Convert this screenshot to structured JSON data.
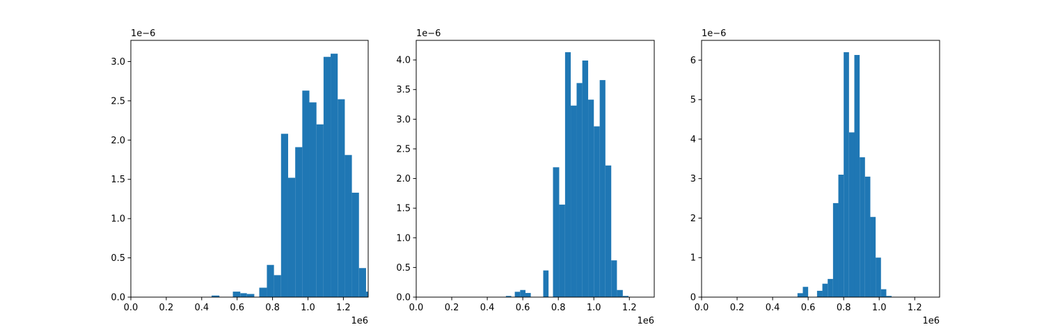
{
  "chart_data": [
    {
      "type": "histogram",
      "bar_color": "#1f77b4",
      "x_offset_label": "1e6",
      "y_offset_label": "1e−6",
      "xlim": [
        0,
        1.34
      ],
      "ylim": [
        0,
        3.27
      ],
      "x_ticks": [
        0.0,
        0.2,
        0.4,
        0.6,
        0.8,
        1.0,
        1.2
      ],
      "x_tick_labels": [
        "0.0",
        "0.2",
        "0.4",
        "0.6",
        "0.8",
        "1.0",
        "1.2"
      ],
      "y_ticks": [
        0.0,
        0.5,
        1.0,
        1.5,
        2.0,
        2.5,
        3.0
      ],
      "y_tick_labels": [
        "0.0",
        "0.5",
        "1.0",
        "1.5",
        "2.0",
        "2.5",
        "3.0"
      ],
      "bins": [
        {
          "x0": 0.456,
          "x1": 0.5,
          "value": 0.02
        },
        {
          "x0": 0.576,
          "x1": 0.618,
          "value": 0.07
        },
        {
          "x0": 0.618,
          "x1": 0.655,
          "value": 0.05
        },
        {
          "x0": 0.655,
          "x1": 0.697,
          "value": 0.04
        },
        {
          "x0": 0.725,
          "x1": 0.768,
          "value": 0.12
        },
        {
          "x0": 0.768,
          "x1": 0.808,
          "value": 0.41
        },
        {
          "x0": 0.808,
          "x1": 0.848,
          "value": 0.28
        },
        {
          "x0": 0.848,
          "x1": 0.888,
          "value": 2.08
        },
        {
          "x0": 0.888,
          "x1": 0.928,
          "value": 1.52
        },
        {
          "x0": 0.928,
          "x1": 0.968,
          "value": 1.91
        },
        {
          "x0": 0.968,
          "x1": 1.008,
          "value": 2.63
        },
        {
          "x0": 1.008,
          "x1": 1.048,
          "value": 2.48
        },
        {
          "x0": 1.048,
          "x1": 1.088,
          "value": 2.2
        },
        {
          "x0": 1.088,
          "x1": 1.128,
          "value": 3.06
        },
        {
          "x0": 1.128,
          "x1": 1.168,
          "value": 3.1
        },
        {
          "x0": 1.168,
          "x1": 1.208,
          "value": 2.52
        },
        {
          "x0": 1.208,
          "x1": 1.248,
          "value": 1.81
        },
        {
          "x0": 1.248,
          "x1": 1.288,
          "value": 1.33
        },
        {
          "x0": 1.288,
          "x1": 1.328,
          "value": 0.37
        },
        {
          "x0": 1.328,
          "x1": 1.34,
          "value": 0.07
        }
      ]
    },
    {
      "type": "histogram",
      "bar_color": "#1f77b4",
      "x_offset_label": "1e6",
      "y_offset_label": "1e−6",
      "xlim": [
        0,
        1.34
      ],
      "ylim": [
        0,
        4.33
      ],
      "x_ticks": [
        0.0,
        0.2,
        0.4,
        0.6,
        0.8,
        1.0,
        1.2
      ],
      "x_tick_labels": [
        "0.0",
        "0.2",
        "0.4",
        "0.6",
        "0.8",
        "1.0",
        "1.2"
      ],
      "y_ticks": [
        0.0,
        0.5,
        1.0,
        1.5,
        2.0,
        2.5,
        3.0,
        3.5,
        4.0
      ],
      "y_tick_labels": [
        "0.0",
        "0.5",
        "1.0",
        "1.5",
        "2.0",
        "2.5",
        "3.0",
        "3.5",
        "4.0"
      ],
      "bins": [
        {
          "x0": 0.505,
          "x1": 0.535,
          "value": 0.02
        },
        {
          "x0": 0.555,
          "x1": 0.585,
          "value": 0.09
        },
        {
          "x0": 0.585,
          "x1": 0.615,
          "value": 0.12
        },
        {
          "x0": 0.615,
          "x1": 0.645,
          "value": 0.07
        },
        {
          "x0": 0.715,
          "x1": 0.745,
          "value": 0.45
        },
        {
          "x0": 0.77,
          "x1": 0.805,
          "value": 2.19
        },
        {
          "x0": 0.805,
          "x1": 0.838,
          "value": 1.56
        },
        {
          "x0": 0.838,
          "x1": 0.87,
          "value": 4.13
        },
        {
          "x0": 0.87,
          "x1": 0.903,
          "value": 3.23
        },
        {
          "x0": 0.903,
          "x1": 0.935,
          "value": 3.61
        },
        {
          "x0": 0.935,
          "x1": 0.968,
          "value": 3.99
        },
        {
          "x0": 0.968,
          "x1": 1.0,
          "value": 3.33
        },
        {
          "x0": 1.0,
          "x1": 1.033,
          "value": 2.88
        },
        {
          "x0": 1.033,
          "x1": 1.065,
          "value": 3.66
        },
        {
          "x0": 1.065,
          "x1": 1.098,
          "value": 2.22
        },
        {
          "x0": 1.098,
          "x1": 1.13,
          "value": 0.62
        },
        {
          "x0": 1.13,
          "x1": 1.163,
          "value": 0.12
        },
        {
          "x0": 1.163,
          "x1": 1.195,
          "value": 0.02
        }
      ]
    },
    {
      "type": "histogram",
      "bar_color": "#1f77b4",
      "x_offset_label": "1e6",
      "y_offset_label": "1e−6",
      "xlim": [
        0,
        1.34
      ],
      "ylim": [
        0,
        6.5
      ],
      "x_ticks": [
        0.0,
        0.2,
        0.4,
        0.6,
        0.8,
        1.0,
        1.2
      ],
      "x_tick_labels": [
        "0.0",
        "0.2",
        "0.4",
        "0.6",
        "0.8",
        "1.0",
        "1.2"
      ],
      "y_ticks": [
        0,
        1,
        2,
        3,
        4,
        5,
        6
      ],
      "y_tick_labels": [
        "0",
        "1",
        "2",
        "3",
        "4",
        "5",
        "6"
      ],
      "bins": [
        {
          "x0": 0.54,
          "x1": 0.57,
          "value": 0.1
        },
        {
          "x0": 0.57,
          "x1": 0.6,
          "value": 0.26
        },
        {
          "x0": 0.65,
          "x1": 0.68,
          "value": 0.16
        },
        {
          "x0": 0.68,
          "x1": 0.71,
          "value": 0.34
        },
        {
          "x0": 0.71,
          "x1": 0.74,
          "value": 0.46
        },
        {
          "x0": 0.74,
          "x1": 0.77,
          "value": 2.38
        },
        {
          "x0": 0.77,
          "x1": 0.8,
          "value": 3.1
        },
        {
          "x0": 0.8,
          "x1": 0.83,
          "value": 6.2
        },
        {
          "x0": 0.83,
          "x1": 0.86,
          "value": 4.17
        },
        {
          "x0": 0.86,
          "x1": 0.89,
          "value": 6.13
        },
        {
          "x0": 0.89,
          "x1": 0.92,
          "value": 3.54
        },
        {
          "x0": 0.92,
          "x1": 0.95,
          "value": 3.05
        },
        {
          "x0": 0.95,
          "x1": 0.98,
          "value": 2.03
        },
        {
          "x0": 0.98,
          "x1": 1.01,
          "value": 1.0
        },
        {
          "x0": 1.01,
          "x1": 1.04,
          "value": 0.2
        },
        {
          "x0": 1.04,
          "x1": 1.07,
          "value": 0.03
        }
      ]
    }
  ]
}
